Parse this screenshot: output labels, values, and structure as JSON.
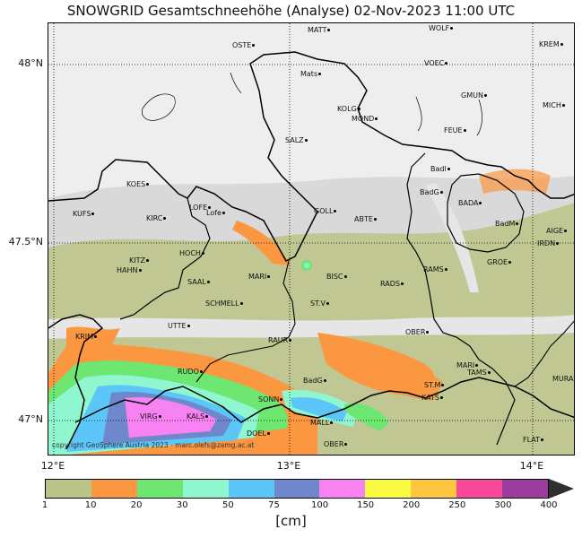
{
  "title": "SNOWGRID Gesamtschneehöhe (Analyse) 02-Nov-2023 11:00 UTC",
  "axes": {
    "y_labels": [
      "48°N",
      "47.5°N",
      "47°N"
    ],
    "x_labels": [
      "12°E",
      "13°E",
      "14°E"
    ]
  },
  "copyright": "copyright GeoSphere Austria 2023 - marc.olefs@zamg.ac.at",
  "colorbar": {
    "unit": "[cm]",
    "ticks": [
      "1",
      "10",
      "20",
      "30",
      "50",
      "75",
      "100",
      "150",
      "200",
      "250",
      "300",
      "400"
    ],
    "colors": [
      "#bcc48a",
      "#fb9740",
      "#6ee672",
      "#8ff6cf",
      "#5cc6f8",
      "#6f88cc",
      "#f782f2",
      "#fbfb3f",
      "#ffc63f",
      "#f9479a",
      "#9b3c9e",
      "#2f2f2f"
    ]
  },
  "stations": [
    {
      "name": "MATT",
      "key": "matt"
    },
    {
      "name": "WOLF",
      "key": "wolf"
    },
    {
      "name": "OSTE",
      "key": "oste"
    },
    {
      "name": "KREM",
      "key": "krem"
    },
    {
      "name": "VOEC",
      "key": "voec"
    },
    {
      "name": "Mats",
      "key": "mats"
    },
    {
      "name": "GMUN",
      "key": "gmun"
    },
    {
      "name": "MICH",
      "key": "mich"
    },
    {
      "name": "KOLG",
      "key": "kolg"
    },
    {
      "name": "MOND",
      "key": "mond"
    },
    {
      "name": "FEUE",
      "key": "feue"
    },
    {
      "name": "SALZ",
      "key": "salz"
    },
    {
      "name": "Badl",
      "key": "badl"
    },
    {
      "name": "KOES",
      "key": "koes"
    },
    {
      "name": "BadG",
      "key": "badg"
    },
    {
      "name": "BADA",
      "key": "bada"
    },
    {
      "name": "LOFE",
      "key": "lofe"
    },
    {
      "name": "Lofe",
      "key": "lofe2"
    },
    {
      "name": "GOLL",
      "key": "goll"
    },
    {
      "name": "ABTE",
      "key": "abte"
    },
    {
      "name": "KUFS",
      "key": "kufs"
    },
    {
      "name": "KIRC",
      "key": "kirc"
    },
    {
      "name": "BadM",
      "key": "badm"
    },
    {
      "name": "AIGE",
      "key": "aige"
    },
    {
      "name": "IRDN",
      "key": "irdn"
    },
    {
      "name": "HOCH",
      "key": "hoch"
    },
    {
      "name": "KITZ",
      "key": "kitz"
    },
    {
      "name": "GROE",
      "key": "groe"
    },
    {
      "name": "HAHN",
      "key": "hahn"
    },
    {
      "name": "RAMS",
      "key": "rams"
    },
    {
      "name": "MARI",
      "key": "mari"
    },
    {
      "name": "BISC",
      "key": "bisc"
    },
    {
      "name": "SAAL",
      "key": "saal"
    },
    {
      "name": "RADS",
      "key": "rads"
    },
    {
      "name": "SCHMELL",
      "key": "schm"
    },
    {
      "name": "ST.V",
      "key": "stv"
    },
    {
      "name": "UTTE",
      "key": "utte"
    },
    {
      "name": "KRIM",
      "key": "krim"
    },
    {
      "name": "OBER",
      "key": "ober"
    },
    {
      "name": "RAUR",
      "key": "raur"
    },
    {
      "name": "MARI",
      "key": "mari2"
    },
    {
      "name": "TAMS",
      "key": "tams"
    },
    {
      "name": "RUDO",
      "key": "rudo"
    },
    {
      "name": "MURA",
      "key": "mura"
    },
    {
      "name": "BadG",
      "key": "badg2"
    },
    {
      "name": "ST.M",
      "key": "stm"
    },
    {
      "name": "KATS",
      "key": "kats"
    },
    {
      "name": "SONN",
      "key": "sonn"
    },
    {
      "name": "VIRG",
      "key": "virg"
    },
    {
      "name": "KALS",
      "key": "kals"
    },
    {
      "name": "MALL",
      "key": "mall"
    },
    {
      "name": "DOEL",
      "key": "doel"
    },
    {
      "name": "FLAT",
      "key": "flat"
    },
    {
      "name": "OBER",
      "key": "ober2"
    }
  ]
}
